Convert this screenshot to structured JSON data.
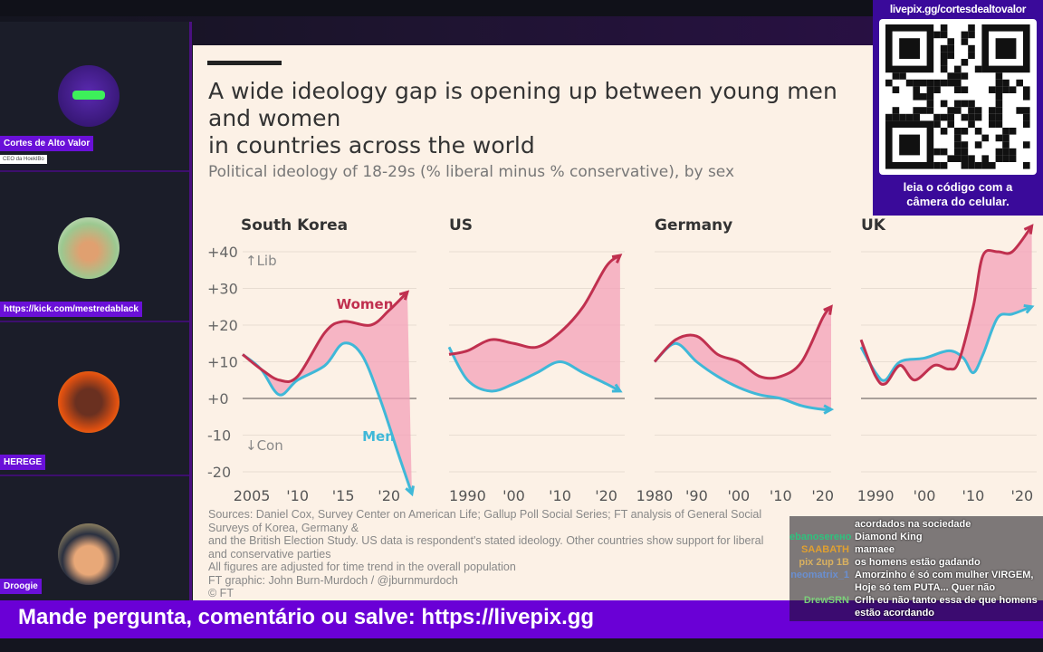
{
  "participants": [
    {
      "name": "Cortes de Alto Valor",
      "subtitle": "CEO da HoeklBo",
      "avatar": "robot-avatar"
    },
    {
      "name": "https://kick.com/mestredablack",
      "avatar": "woman-avatar"
    },
    {
      "name": "HEREGE",
      "avatar": "man-avatar"
    },
    {
      "name": "Droogie",
      "avatar": "cartoon-avatar"
    }
  ],
  "qr": {
    "url": "livepix.gg/cortesdealtovalor",
    "caption_1": "leia o código com a",
    "caption_2": "câmera do celular."
  },
  "banner": {
    "text": "Mande pergunta, comentário ou salve: https://livepix.gg"
  },
  "chat": [
    {
      "user": "",
      "text": "acordados na sociedade",
      "color": "#ffffff"
    },
    {
      "user": "ebanoserено",
      "text": "Diamond King",
      "color": "#2ec27e"
    },
    {
      "user": "SAABATH",
      "text": "mamaee",
      "color": "#e0a030"
    },
    {
      "user": "pix 2up 1B",
      "text": "os homens estão gadando",
      "color": "#d8b060"
    },
    {
      "user": "neomatrix_1",
      "text": "Amorzinho é só com mulher VIRGEM, Hoje só tem PUTA... Quer não",
      "color": "#6a8fd0"
    },
    {
      "user": "DrewSRN",
      "text": "Crlh eu não tanto essa de que homens estão acordando",
      "color": "#7ad07a"
    }
  ],
  "chart": {
    "title_1": "A wide ideology gap is opening up between young men and women",
    "title_2": "in countries across the world",
    "subtitle": "Political ideology of 18-29s (% liberal minus % conservative), by sex",
    "sources": [
      "Sources: Daniel Cox, Survey Center on American Life; Gallup Poll Social Series; FT analysis of General Social Surveys of Korea, Germany &",
      "and the British Election Study. US data is respondent's stated ideology. Other countries show support for liberal and conservative parties",
      "All figures are adjusted for time trend in the overall population",
      "FT graphic: John Burn-Murdoch / @jburnmurdoch",
      "© FT"
    ],
    "lib_label": "↑Lib",
    "con_label": "↓Con",
    "women_label": "Women",
    "men_label": "Men"
  },
  "chart_data": {
    "type": "line",
    "title": "A wide ideology gap is opening up between young men and women in countries across the world",
    "ylabel": "% liberal minus % conservative",
    "ylim": [
      -25,
      45
    ],
    "yticks": [
      "+40",
      "+30",
      "+20",
      "+10",
      "+0",
      "-10",
      "-20"
    ],
    "ytick_values": [
      40,
      30,
      20,
      10,
      0,
      -10,
      -20
    ],
    "colors": {
      "women": "#c0304f",
      "men": "#3fb8d8",
      "gap": "#f4a0b8"
    },
    "panels": [
      {
        "name": "South Korea",
        "xlim": [
          2004,
          2023
        ],
        "xticks": [
          2005,
          2010,
          2015,
          2020
        ],
        "xtick_labels": [
          "2005",
          "'10",
          "'15",
          "'20"
        ],
        "series": [
          {
            "name": "Women",
            "x": [
              2004,
              2006,
              2008,
              2010,
              2013,
              2015,
              2018,
              2020,
              2022
            ],
            "y": [
              12,
              8,
              5,
              6,
              18,
              21,
              20,
              24,
              29
            ]
          },
          {
            "name": "Men",
            "x": [
              2004,
              2006,
              2008,
              2010,
              2013,
              2015,
              2017,
              2019,
              2021,
              2022.5
            ],
            "y": [
              12,
              8,
              1,
              5,
              9,
              15,
              12,
              0,
              -15,
              -26
            ]
          }
        ]
      },
      {
        "name": "US",
        "xlim": [
          1986,
          2024
        ],
        "xticks": [
          1990,
          2000,
          2010,
          2020
        ],
        "xtick_labels": [
          "1990",
          "'00",
          "'10",
          "'20"
        ],
        "series": [
          {
            "name": "Women",
            "x": [
              1986,
              1990,
              1995,
              2000,
              2005,
              2010,
              2015,
              2020,
              2023
            ],
            "y": [
              12,
              13,
              16,
              15,
              14,
              18,
              25,
              36,
              39
            ]
          },
          {
            "name": "Men",
            "x": [
              1986,
              1990,
              1995,
              2000,
              2005,
              2010,
              2015,
              2020,
              2023
            ],
            "y": [
              14,
              5,
              2,
              4,
              7,
              10,
              7,
              4,
              2
            ]
          }
        ]
      },
      {
        "name": "Germany",
        "xlim": [
          1980,
          2022
        ],
        "xticks": [
          1980,
          1990,
          2000,
          2010,
          2020
        ],
        "xtick_labels": [
          "1980",
          "'90",
          "'00",
          "'10",
          "'20"
        ],
        "series": [
          {
            "name": "Women",
            "x": [
              1980,
              1985,
              1990,
              1995,
              2000,
              2005,
              2010,
              2015,
              2020,
              2022
            ],
            "y": [
              10,
              16,
              17,
              12,
              10,
              6,
              6,
              10,
              22,
              25
            ]
          },
          {
            "name": "Men",
            "x": [
              1980,
              1985,
              1990,
              1995,
              2000,
              2005,
              2010,
              2015,
              2020,
              2022
            ],
            "y": [
              10,
              15,
              10,
              6,
              3,
              1,
              0,
              -2,
              -3,
              -3
            ]
          }
        ]
      },
      {
        "name": "UK",
        "xlim": [
          1987,
          2023
        ],
        "xticks": [
          1990,
          2000,
          2010,
          2020
        ],
        "xtick_labels": [
          "1990",
          "'00",
          "'10",
          "'20"
        ],
        "series": [
          {
            "name": "Women",
            "x": [
              1987,
              1990,
              1992,
              1995,
              1998,
              2002,
              2005,
              2007,
              2010,
              2012,
              2015,
              2018,
              2022
            ],
            "y": [
              16,
              6,
              4,
              9,
              5,
              9,
              8,
              10,
              25,
              39,
              40,
              40,
              47
            ]
          },
          {
            "name": "Men",
            "x": [
              1987,
              1990,
              1992,
              1995,
              2000,
              2005,
              2008,
              2010,
              2012,
              2015,
              2018,
              2022
            ],
            "y": [
              14,
              7,
              5,
              10,
              11,
              13,
              11,
              7,
              12,
              22,
              23,
              25
            ]
          }
        ]
      }
    ]
  }
}
